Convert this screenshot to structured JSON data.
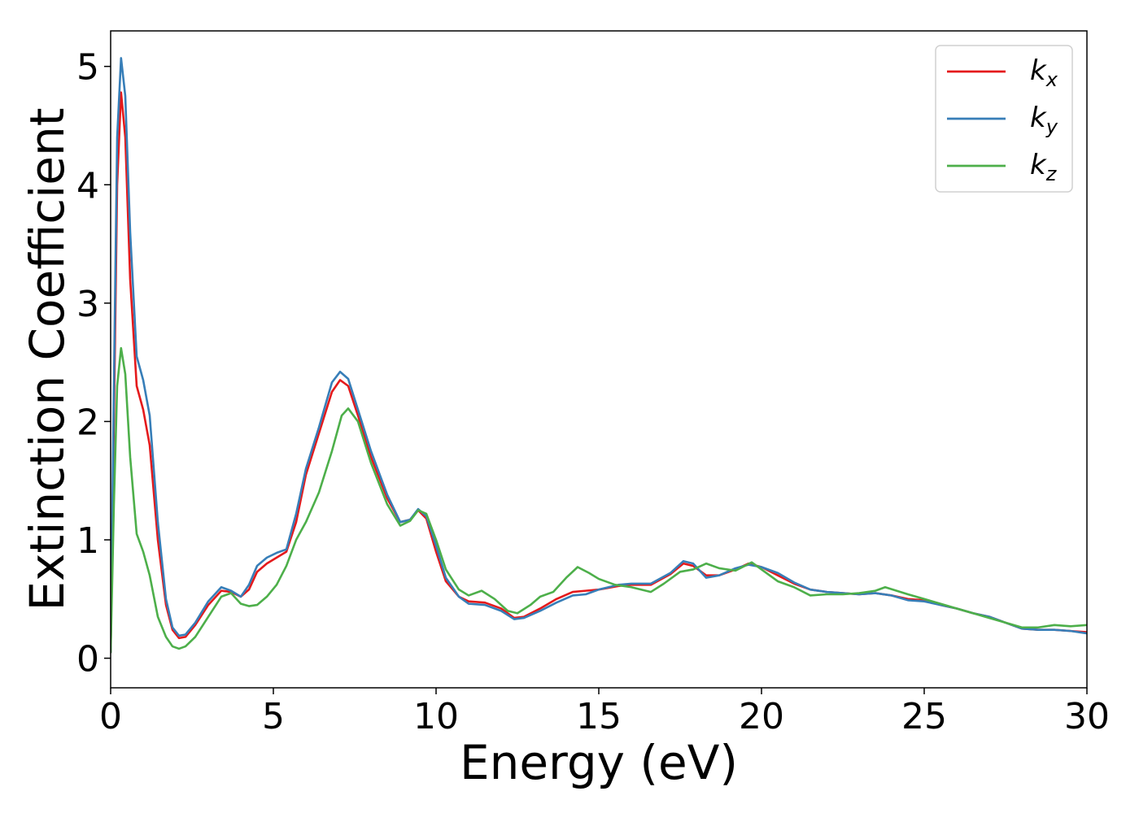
{
  "chart_data": {
    "type": "line",
    "title": "",
    "xlabel": "Energy (eV)",
    "ylabel": "Extinction Coefficient",
    "xlim": [
      0,
      30
    ],
    "ylim": [
      -0.25,
      5.3
    ],
    "xticks": [
      "0",
      "5",
      "10",
      "15",
      "20",
      "25",
      "30"
    ],
    "yticks": [
      "0",
      "1",
      "2",
      "3",
      "4",
      "5"
    ],
    "grid": false,
    "legend_position": "top-right",
    "series": [
      {
        "name": "k",
        "subscript": "x",
        "color": "#e41a1c",
        "points": [
          [
            0,
            0.05
          ],
          [
            0.1,
            2.0
          ],
          [
            0.2,
            4.0
          ],
          [
            0.32,
            4.78
          ],
          [
            0.45,
            4.4
          ],
          [
            0.6,
            3.2
          ],
          [
            0.8,
            2.3
          ],
          [
            1.0,
            2.1
          ],
          [
            1.2,
            1.8
          ],
          [
            1.45,
            1.0
          ],
          [
            1.7,
            0.45
          ],
          [
            1.9,
            0.24
          ],
          [
            2.1,
            0.17
          ],
          [
            2.3,
            0.18
          ],
          [
            2.6,
            0.28
          ],
          [
            3.0,
            0.45
          ],
          [
            3.4,
            0.57
          ],
          [
            3.7,
            0.56
          ],
          [
            4.0,
            0.52
          ],
          [
            4.25,
            0.58
          ],
          [
            4.5,
            0.73
          ],
          [
            4.8,
            0.8
          ],
          [
            5.1,
            0.85
          ],
          [
            5.4,
            0.9
          ],
          [
            5.7,
            1.15
          ],
          [
            6.0,
            1.55
          ],
          [
            6.4,
            1.9
          ],
          [
            6.8,
            2.25
          ],
          [
            7.05,
            2.35
          ],
          [
            7.3,
            2.3
          ],
          [
            7.6,
            2.05
          ],
          [
            8.0,
            1.7
          ],
          [
            8.5,
            1.35
          ],
          [
            8.9,
            1.15
          ],
          [
            9.2,
            1.17
          ],
          [
            9.45,
            1.25
          ],
          [
            9.7,
            1.18
          ],
          [
            10.0,
            0.9
          ],
          [
            10.3,
            0.65
          ],
          [
            10.7,
            0.52
          ],
          [
            11.0,
            0.48
          ],
          [
            11.5,
            0.47
          ],
          [
            12.0,
            0.42
          ],
          [
            12.4,
            0.34
          ],
          [
            12.7,
            0.35
          ],
          [
            13.2,
            0.42
          ],
          [
            13.7,
            0.5
          ],
          [
            14.2,
            0.56
          ],
          [
            14.6,
            0.57
          ],
          [
            15.0,
            0.58
          ],
          [
            15.6,
            0.61
          ],
          [
            16.0,
            0.62
          ],
          [
            16.6,
            0.62
          ],
          [
            17.2,
            0.71
          ],
          [
            17.6,
            0.8
          ],
          [
            17.9,
            0.78
          ],
          [
            18.3,
            0.7
          ],
          [
            18.7,
            0.7
          ],
          [
            19.2,
            0.75
          ],
          [
            19.6,
            0.8
          ],
          [
            20.0,
            0.77
          ],
          [
            20.5,
            0.7
          ],
          [
            21.0,
            0.63
          ],
          [
            21.5,
            0.58
          ],
          [
            22.0,
            0.56
          ],
          [
            22.5,
            0.55
          ],
          [
            23.0,
            0.54
          ],
          [
            23.5,
            0.55
          ],
          [
            24.0,
            0.53
          ],
          [
            24.5,
            0.5
          ],
          [
            25.0,
            0.49
          ],
          [
            25.5,
            0.45
          ],
          [
            26.0,
            0.42
          ],
          [
            26.5,
            0.38
          ],
          [
            27.0,
            0.35
          ],
          [
            27.5,
            0.3
          ],
          [
            28.0,
            0.25
          ],
          [
            28.5,
            0.24
          ],
          [
            29.0,
            0.24
          ],
          [
            29.5,
            0.23
          ],
          [
            30.0,
            0.22
          ]
        ]
      },
      {
        "name": "k",
        "subscript": "y",
        "color": "#377eb8",
        "points": [
          [
            0,
            0.05
          ],
          [
            0.1,
            2.3
          ],
          [
            0.2,
            4.4
          ],
          [
            0.32,
            5.07
          ],
          [
            0.45,
            4.75
          ],
          [
            0.6,
            3.6
          ],
          [
            0.8,
            2.55
          ],
          [
            1.0,
            2.35
          ],
          [
            1.2,
            2.05
          ],
          [
            1.45,
            1.15
          ],
          [
            1.7,
            0.5
          ],
          [
            1.9,
            0.26
          ],
          [
            2.1,
            0.19
          ],
          [
            2.3,
            0.2
          ],
          [
            2.6,
            0.3
          ],
          [
            3.0,
            0.48
          ],
          [
            3.4,
            0.6
          ],
          [
            3.7,
            0.57
          ],
          [
            4.0,
            0.52
          ],
          [
            4.25,
            0.62
          ],
          [
            4.5,
            0.78
          ],
          [
            4.8,
            0.85
          ],
          [
            5.1,
            0.89
          ],
          [
            5.4,
            0.92
          ],
          [
            5.7,
            1.22
          ],
          [
            6.0,
            1.6
          ],
          [
            6.4,
            1.95
          ],
          [
            6.8,
            2.33
          ],
          [
            7.05,
            2.42
          ],
          [
            7.3,
            2.36
          ],
          [
            7.6,
            2.1
          ],
          [
            8.0,
            1.75
          ],
          [
            8.5,
            1.38
          ],
          [
            8.9,
            1.15
          ],
          [
            9.2,
            1.17
          ],
          [
            9.45,
            1.26
          ],
          [
            9.7,
            1.2
          ],
          [
            10.0,
            0.95
          ],
          [
            10.3,
            0.68
          ],
          [
            10.7,
            0.52
          ],
          [
            11.0,
            0.46
          ],
          [
            11.5,
            0.45
          ],
          [
            12.0,
            0.4
          ],
          [
            12.4,
            0.33
          ],
          [
            12.7,
            0.34
          ],
          [
            13.2,
            0.4
          ],
          [
            13.7,
            0.47
          ],
          [
            14.2,
            0.53
          ],
          [
            14.6,
            0.54
          ],
          [
            15.0,
            0.58
          ],
          [
            15.6,
            0.62
          ],
          [
            16.0,
            0.63
          ],
          [
            16.6,
            0.63
          ],
          [
            17.2,
            0.72
          ],
          [
            17.6,
            0.82
          ],
          [
            17.9,
            0.8
          ],
          [
            18.3,
            0.68
          ],
          [
            18.7,
            0.7
          ],
          [
            19.2,
            0.76
          ],
          [
            19.6,
            0.79
          ],
          [
            20.0,
            0.77
          ],
          [
            20.5,
            0.72
          ],
          [
            21.0,
            0.64
          ],
          [
            21.5,
            0.58
          ],
          [
            22.0,
            0.56
          ],
          [
            22.5,
            0.55
          ],
          [
            23.0,
            0.54
          ],
          [
            23.5,
            0.55
          ],
          [
            24.0,
            0.53
          ],
          [
            24.5,
            0.49
          ],
          [
            25.0,
            0.48
          ],
          [
            25.5,
            0.45
          ],
          [
            26.0,
            0.42
          ],
          [
            26.5,
            0.38
          ],
          [
            27.0,
            0.35
          ],
          [
            27.5,
            0.3
          ],
          [
            28.0,
            0.25
          ],
          [
            28.5,
            0.24
          ],
          [
            29.0,
            0.24
          ],
          [
            29.5,
            0.23
          ],
          [
            30.0,
            0.21
          ]
        ]
      },
      {
        "name": "k",
        "subscript": "z",
        "color": "#4daf4a",
        "points": [
          [
            0,
            0.05
          ],
          [
            0.1,
            1.3
          ],
          [
            0.2,
            2.3
          ],
          [
            0.32,
            2.62
          ],
          [
            0.45,
            2.4
          ],
          [
            0.6,
            1.7
          ],
          [
            0.8,
            1.05
          ],
          [
            1.0,
            0.9
          ],
          [
            1.2,
            0.7
          ],
          [
            1.45,
            0.35
          ],
          [
            1.7,
            0.18
          ],
          [
            1.9,
            0.1
          ],
          [
            2.1,
            0.08
          ],
          [
            2.3,
            0.1
          ],
          [
            2.6,
            0.18
          ],
          [
            3.0,
            0.35
          ],
          [
            3.4,
            0.52
          ],
          [
            3.7,
            0.55
          ],
          [
            4.0,
            0.46
          ],
          [
            4.25,
            0.44
          ],
          [
            4.5,
            0.45
          ],
          [
            4.8,
            0.52
          ],
          [
            5.1,
            0.62
          ],
          [
            5.4,
            0.78
          ],
          [
            5.7,
            1.0
          ],
          [
            6.0,
            1.15
          ],
          [
            6.4,
            1.4
          ],
          [
            6.8,
            1.75
          ],
          [
            7.1,
            2.05
          ],
          [
            7.3,
            2.11
          ],
          [
            7.6,
            2.0
          ],
          [
            8.0,
            1.65
          ],
          [
            8.5,
            1.3
          ],
          [
            8.9,
            1.12
          ],
          [
            9.2,
            1.16
          ],
          [
            9.45,
            1.25
          ],
          [
            9.7,
            1.22
          ],
          [
            10.0,
            1.0
          ],
          [
            10.3,
            0.75
          ],
          [
            10.7,
            0.58
          ],
          [
            11.0,
            0.53
          ],
          [
            11.4,
            0.57
          ],
          [
            11.8,
            0.5
          ],
          [
            12.2,
            0.4
          ],
          [
            12.5,
            0.38
          ],
          [
            12.9,
            0.45
          ],
          [
            13.2,
            0.52
          ],
          [
            13.6,
            0.56
          ],
          [
            14.0,
            0.68
          ],
          [
            14.35,
            0.77
          ],
          [
            14.7,
            0.72
          ],
          [
            15.0,
            0.67
          ],
          [
            15.5,
            0.62
          ],
          [
            16.0,
            0.6
          ],
          [
            16.6,
            0.56
          ],
          [
            17.0,
            0.63
          ],
          [
            17.5,
            0.73
          ],
          [
            17.9,
            0.75
          ],
          [
            18.3,
            0.8
          ],
          [
            18.7,
            0.76
          ],
          [
            19.2,
            0.74
          ],
          [
            19.7,
            0.81
          ],
          [
            20.0,
            0.75
          ],
          [
            20.5,
            0.65
          ],
          [
            21.0,
            0.6
          ],
          [
            21.5,
            0.53
          ],
          [
            22.0,
            0.54
          ],
          [
            22.5,
            0.54
          ],
          [
            23.0,
            0.55
          ],
          [
            23.5,
            0.57
          ],
          [
            23.8,
            0.6
          ],
          [
            24.5,
            0.54
          ],
          [
            25.0,
            0.5
          ],
          [
            25.5,
            0.46
          ],
          [
            26.0,
            0.42
          ],
          [
            26.5,
            0.38
          ],
          [
            27.0,
            0.34
          ],
          [
            27.5,
            0.3
          ],
          [
            28.0,
            0.26
          ],
          [
            28.5,
            0.26
          ],
          [
            29.0,
            0.28
          ],
          [
            29.5,
            0.27
          ],
          [
            30.0,
            0.28
          ]
        ]
      }
    ]
  }
}
